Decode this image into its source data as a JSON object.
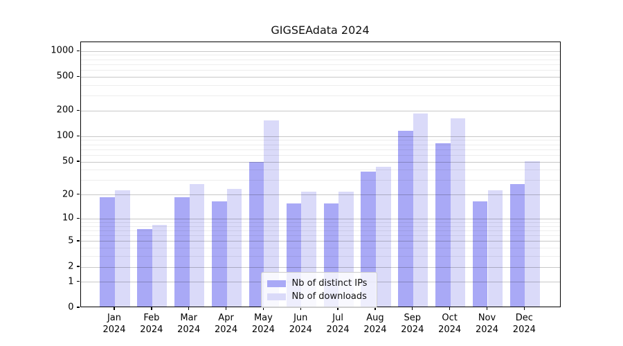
{
  "title": "GIGSEAdata 2024",
  "chart_data": {
    "type": "bar",
    "title": "GIGSEAdata 2024",
    "categories": [
      "Jan",
      "Feb",
      "Mar",
      "Apr",
      "May",
      "Jun",
      "Jul",
      "Aug",
      "Sep",
      "Oct",
      "Nov",
      "Dec"
    ],
    "category_year": "2024",
    "series": [
      {
        "name": "Nb of distinct IPs",
        "color": "#a9a9f6",
        "values": [
          18,
          7,
          18,
          16,
          48,
          15,
          15,
          37,
          112,
          81,
          16,
          26
        ]
      },
      {
        "name": "Nb of downloads",
        "color": "#dadaf9",
        "values": [
          22,
          8,
          26,
          23,
          150,
          21,
          21,
          42,
          181,
          159,
          22,
          49
        ]
      }
    ],
    "y_axis": {
      "scale": "log(1+y)",
      "major_ticks": [
        0,
        1,
        2,
        5,
        10,
        20,
        50,
        100,
        200,
        500,
        1000
      ],
      "minor_ticks": [
        3,
        4,
        6,
        7,
        8,
        9,
        30,
        40,
        60,
        70,
        80,
        90,
        300,
        400,
        600,
        700,
        800,
        900
      ],
      "ymax": 1280
    },
    "grid": "both",
    "legend_position": "lower center"
  }
}
